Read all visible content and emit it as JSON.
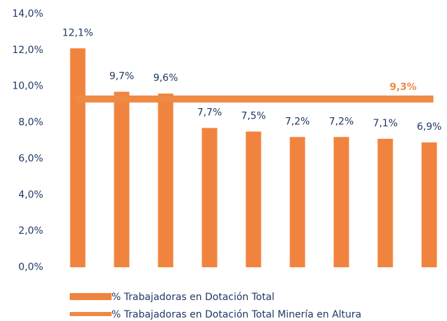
{
  "chart_data": {
    "type": "bar",
    "categories": [
      null,
      null,
      null,
      null,
      null,
      null,
      null,
      null,
      null
    ],
    "series": [
      {
        "name": "% Trabajadoras en Dotación Total",
        "type": "bar",
        "color": "#f0843e",
        "values": [
          12.1,
          9.7,
          9.6,
          7.7,
          7.5,
          7.2,
          7.2,
          7.1,
          6.9
        ],
        "value_labels": [
          "12,1%",
          "9,7%",
          "9,6%",
          "7,7%",
          "7,5%",
          "7,2%",
          "7,2%",
          "7,1%",
          "6,9%"
        ]
      },
      {
        "name": "% Trabajadoras en Dotación Total Minería en Altura",
        "type": "line",
        "color": "#ef8a45",
        "value": 9.3,
        "value_label": "9,3%"
      }
    ],
    "ylim": [
      0,
      14
    ],
    "yticks": [
      {
        "value": 0,
        "label": "0,0%"
      },
      {
        "value": 2,
        "label": "2,0%"
      },
      {
        "value": 4,
        "label": "4,0%"
      },
      {
        "value": 6,
        "label": "6,0%"
      },
      {
        "value": 8,
        "label": "8,0%"
      },
      {
        "value": 10,
        "label": "10,0%"
      },
      {
        "value": 12,
        "label": "12,0%"
      },
      {
        "value": 14,
        "label": "14,0%"
      }
    ],
    "grid": false,
    "legend": "bottom"
  }
}
